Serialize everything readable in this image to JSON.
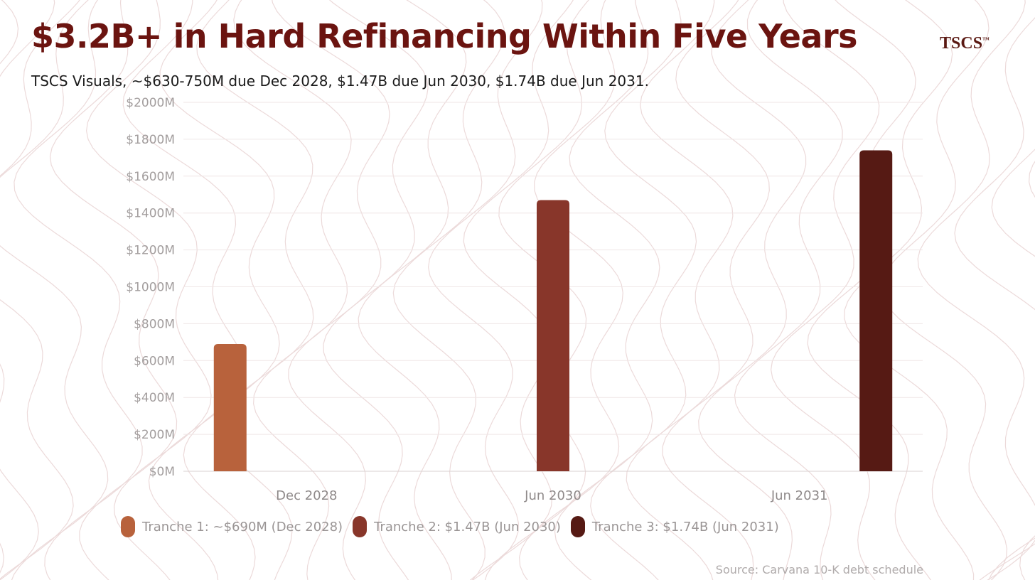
{
  "header": {
    "title": "$3.2B+ in Hard Refinancing Within Five Years",
    "subtitle": "TSCS Visuals, ~$630-750M due Dec 2028, $1.47B due Jun 2030, $1.74B due Jun 2031.",
    "logo": "TSCS",
    "logo_mark": "™"
  },
  "footer": {
    "source": "Source: Carvana 10-K debt schedule"
  },
  "chart_data": {
    "type": "bar",
    "title": "$3.2B+ in Hard Refinancing Within Five Years",
    "subtitle": "TSCS Visuals, ~$630-750M due Dec 2028, $1.47B due Jun 2030, $1.74B due Jun 2031.",
    "categories": [
      "Dec 2028",
      "Jun 2030",
      "Jun 2031"
    ],
    "series": [
      {
        "name": "Tranche 1: ~$690M (Dec 2028)",
        "color": "#b8623c",
        "values": [
          690,
          null,
          null
        ]
      },
      {
        "name": "Tranche 2: $1.47B (Jun 2030)",
        "color": "#88362a",
        "values": [
          null,
          1470,
          null
        ]
      },
      {
        "name": "Tranche 3: $1.74B (Jun 2031)",
        "color": "#561a14",
        "values": [
          null,
          null,
          1740
        ]
      }
    ],
    "ylim": [
      0,
      2000
    ],
    "yticks": [
      0,
      200,
      400,
      600,
      800,
      1000,
      1200,
      1400,
      1600,
      1800,
      2000
    ],
    "ytick_labels": [
      "$0M",
      "$200M",
      "$400M",
      "$600M",
      "$800M",
      "$1000M",
      "$1200M",
      "$1400M",
      "$1600M",
      "$1800M",
      "$2000M"
    ],
    "grid": true,
    "legend": "bottom",
    "xlabel": "",
    "ylabel": ""
  }
}
